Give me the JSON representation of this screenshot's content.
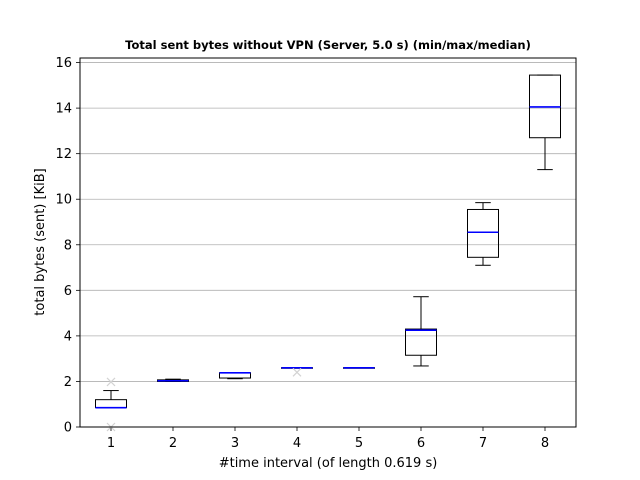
{
  "chart_data": {
    "type": "box",
    "title": "Total sent bytes without VPN (Server, 5.0 s) (min/max/median)",
    "xlabel": "#time interval (of length 0.619 s)",
    "ylabel": "total bytes (sent) [KiB]",
    "ylim": [
      0,
      16.2
    ],
    "xlim": [
      0.5,
      8.5
    ],
    "yticks": [
      0,
      2,
      4,
      6,
      8,
      10,
      12,
      14,
      16
    ],
    "categories": [
      "1",
      "2",
      "3",
      "4",
      "5",
      "6",
      "7",
      "8"
    ],
    "grid": "horizontal",
    "median_color": "#0000ff",
    "outlier_color": "#d3d3d3",
    "boxes": [
      {
        "x": 1,
        "whisker_low": 0.85,
        "q1": 0.85,
        "median": 0.85,
        "q3": 1.2,
        "whisker_high": 1.6,
        "outliers": [
          1.98,
          0.0
        ]
      },
      {
        "x": 2,
        "whisker_low": 2.0,
        "q1": 2.0,
        "median": 2.03,
        "q3": 2.07,
        "whisker_high": 2.1,
        "outliers": []
      },
      {
        "x": 3,
        "whisker_low": 2.12,
        "q1": 2.15,
        "median": 2.38,
        "q3": 2.38,
        "whisker_high": 2.38,
        "outliers": []
      },
      {
        "x": 4,
        "whisker_low": 2.6,
        "q1": 2.6,
        "median": 2.6,
        "q3": 2.6,
        "whisker_high": 2.6,
        "outliers": [
          2.4
        ]
      },
      {
        "x": 5,
        "whisker_low": 2.6,
        "q1": 2.6,
        "median": 2.6,
        "q3": 2.6,
        "whisker_high": 2.6,
        "outliers": []
      },
      {
        "x": 6,
        "whisker_low": 2.68,
        "q1": 3.15,
        "median": 4.25,
        "q3": 4.3,
        "whisker_high": 5.72,
        "outliers": []
      },
      {
        "x": 7,
        "whisker_low": 7.1,
        "q1": 7.45,
        "median": 8.55,
        "q3": 9.55,
        "whisker_high": 9.85,
        "outliers": []
      },
      {
        "x": 8,
        "whisker_low": 11.3,
        "q1": 12.7,
        "median": 14.05,
        "q3": 15.45,
        "whisker_high": 15.45,
        "outliers": []
      }
    ]
  }
}
